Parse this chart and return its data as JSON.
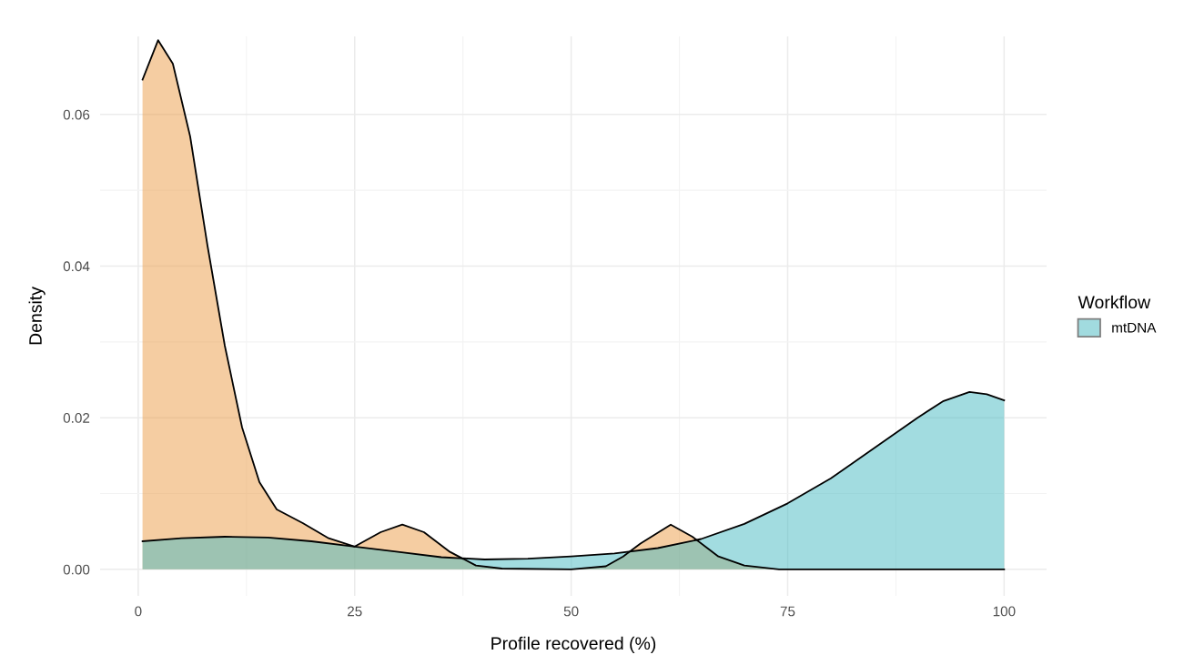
{
  "chart_data": {
    "type": "area",
    "xlabel": "Profile recovered (%)",
    "ylabel": "Density",
    "legend_title": "Workflow",
    "xlim": [
      -4.4,
      104.9
    ],
    "ylim": [
      -0.0035,
      0.0703
    ],
    "xticks": [
      0,
      25,
      50,
      75,
      100
    ],
    "yticks": [
      {
        "value": 0,
        "label": "0.00"
      },
      {
        "value": 0.02,
        "label": "0.02"
      },
      {
        "value": 0.04,
        "label": "0.04"
      },
      {
        "value": 0.06,
        "label": "0.06"
      }
    ],
    "grid": true,
    "legend": "right",
    "series": [
      {
        "color": "#eb9b45",
        "x": [
          0.5,
          2.3,
          4,
          6,
          8,
          10,
          12,
          14,
          16,
          19,
          22,
          25,
          28,
          30.5,
          33,
          36,
          39,
          42,
          50,
          54,
          56,
          58,
          61.5,
          64,
          67,
          70,
          74,
          100
        ],
        "values": [
          0.0646,
          0.0698,
          0.0667,
          0.0571,
          0.0427,
          0.0295,
          0.0187,
          0.0115,
          0.0079,
          0.0061,
          0.0041,
          0.003,
          0.0049,
          0.0059,
          0.0049,
          0.0023,
          0.0005,
          0.0001,
          0.0,
          0.0004,
          0.0017,
          0.0034,
          0.0059,
          0.0043,
          0.0017,
          0.0005,
          0.0,
          0.0
        ]
      },
      {
        "name": "mtDNA",
        "color": "#45b9c1",
        "x": [
          0.5,
          5,
          10,
          15,
          20,
          25,
          30,
          35,
          40,
          45,
          50,
          55,
          60,
          65,
          70,
          75,
          80,
          85,
          90,
          93,
          96,
          98,
          100
        ],
        "values": [
          0.0037,
          0.0041,
          0.0043,
          0.0042,
          0.0037,
          0.003,
          0.0023,
          0.0016,
          0.0013,
          0.0014,
          0.0017,
          0.0021,
          0.0028,
          0.004,
          0.006,
          0.0087,
          0.012,
          0.016,
          0.02,
          0.0222,
          0.0234,
          0.0231,
          0.0223
        ]
      }
    ]
  }
}
